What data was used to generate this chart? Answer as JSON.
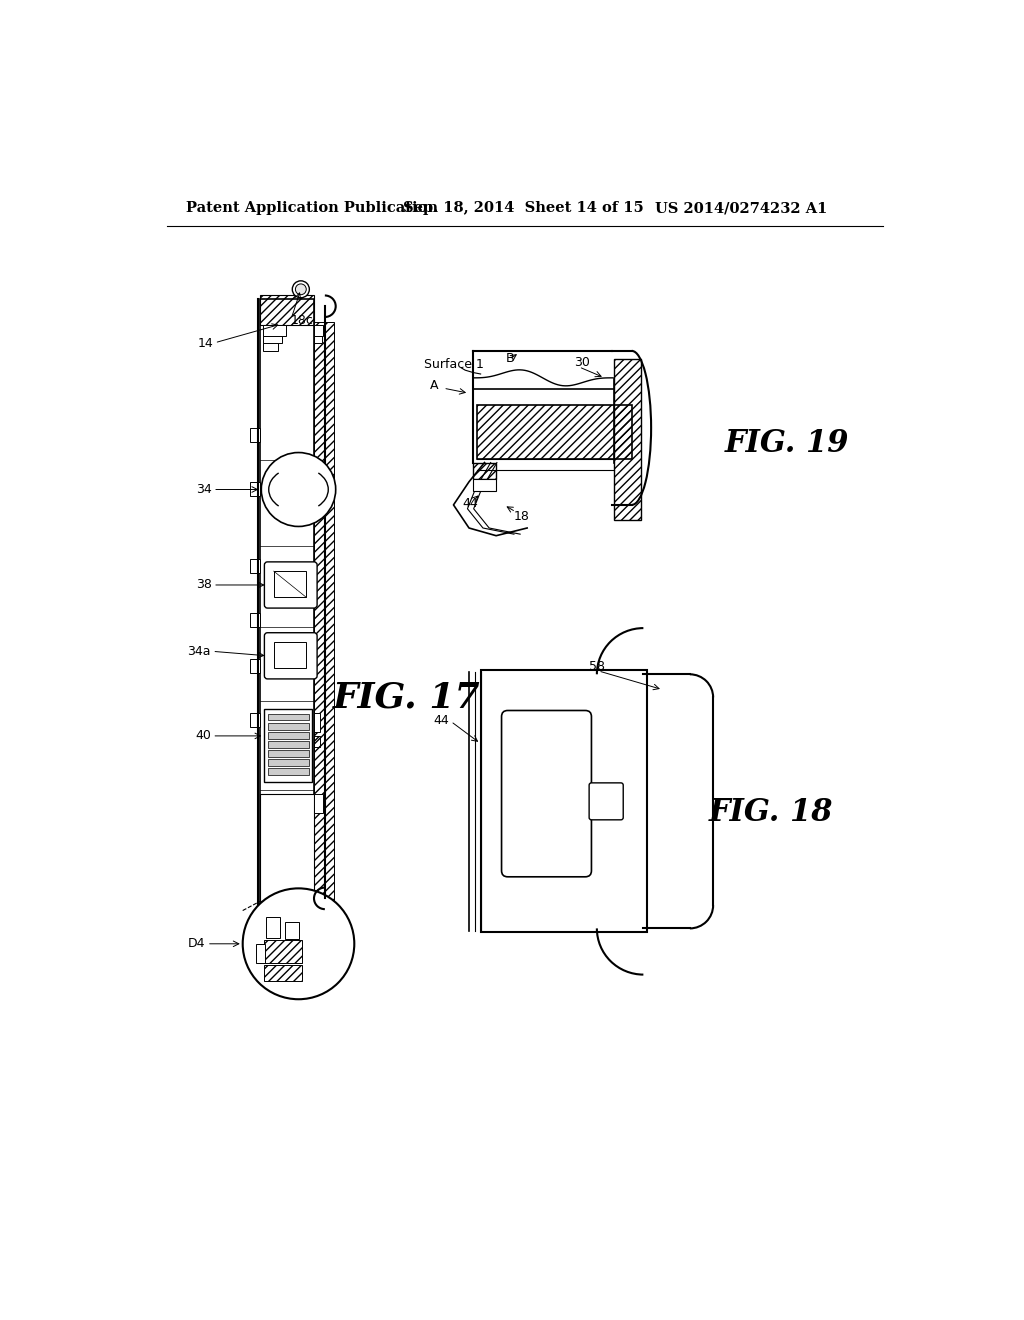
{
  "bg": "#ffffff",
  "lc": "#000000",
  "header_left": "Patent Application Publication",
  "header_mid": "Sep. 18, 2014  Sheet 14 of 15",
  "header_right": "US 2014/0274232 A1",
  "fig17_label": "FIG. 17",
  "fig18_label": "FIG. 18",
  "fig19_label": "FIG. 19"
}
